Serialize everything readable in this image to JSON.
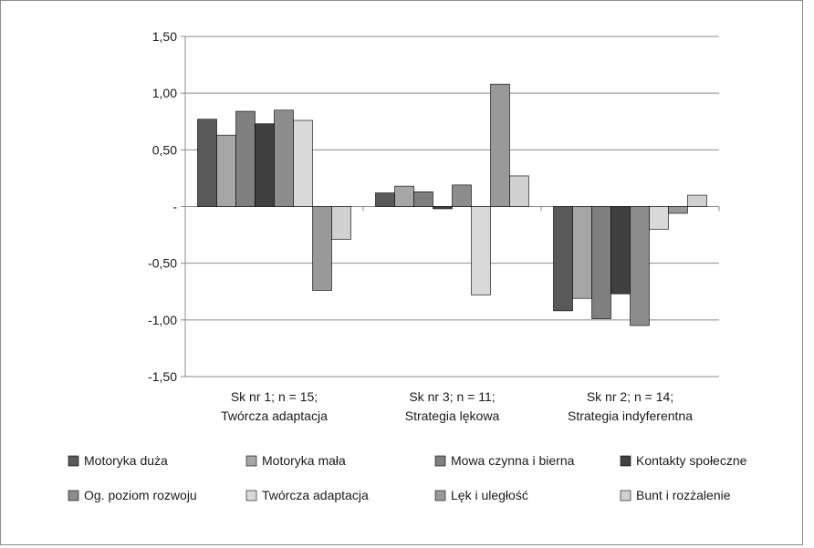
{
  "chart_data": {
    "type": "bar",
    "title": "",
    "xlabel": "",
    "ylabel": "",
    "ylim": [
      -1.5,
      1.5
    ],
    "yticks": [
      1.5,
      1.0,
      0.5,
      0,
      -0.5,
      -1.0,
      -1.5
    ],
    "ytick_labels": [
      "1,50",
      "1,00",
      "0,50",
      "-",
      "-0,50",
      "-1,00",
      "-1,50"
    ],
    "grid": "horizontal",
    "legend_position": "bottom",
    "categories": [
      [
        "Sk nr 1; n = 15;",
        "Twórcza adaptacja"
      ],
      [
        "Sk nr 3; n = 11;",
        "Strategia lękowa"
      ],
      [
        "Sk nr 2; n = 14;",
        "Strategia indyferentna"
      ]
    ],
    "series": [
      {
        "name": "Motoryka duża",
        "color": "#595959",
        "values": [
          0.77,
          0.12,
          -0.92
        ]
      },
      {
        "name": "Motoryka mała",
        "color": "#a6a6a6",
        "values": [
          0.63,
          0.18,
          -0.81
        ]
      },
      {
        "name": "Mowa czynna i bierna",
        "color": "#7f7f7f",
        "values": [
          0.84,
          0.13,
          -0.99
        ]
      },
      {
        "name": "Kontakty społeczne",
        "color": "#404040",
        "values": [
          0.73,
          -0.02,
          -0.77
        ]
      },
      {
        "name": "Og. poziom rozwoju",
        "color": "#8c8c8c",
        "values": [
          0.85,
          0.19,
          -1.05
        ]
      },
      {
        "name": "Twórcza adaptacja",
        "color": "#d9d9d9",
        "values": [
          0.76,
          -0.78,
          -0.2
        ]
      },
      {
        "name": "Lęk i uległość",
        "color": "#999999",
        "values": [
          -0.74,
          1.08,
          -0.06
        ]
      },
      {
        "name": "Bunt i rozżalenie",
        "color": "#d0d0d0",
        "values": [
          -0.29,
          0.27,
          0.1
        ]
      }
    ]
  }
}
